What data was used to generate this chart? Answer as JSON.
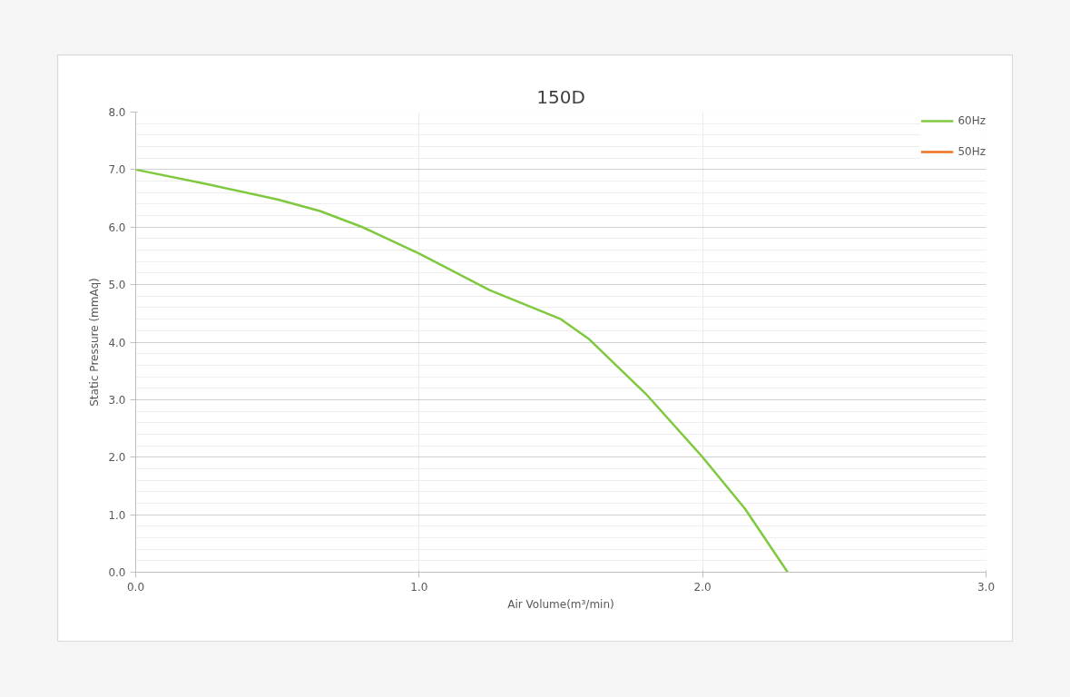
{
  "chart_data": {
    "type": "line",
    "title": "150D",
    "xlabel": "Air Volume(m³/min)",
    "ylabel": "Static Pressure (mmAq)",
    "x": [
      0,
      0.25,
      0.5,
      0.65,
      0.8,
      1.0,
      1.25,
      1.5,
      1.6,
      1.8,
      2.0,
      2.15,
      2.3
    ],
    "series": [
      {
        "name": "60Hz",
        "color": "#7fc840",
        "values": [
          7.0,
          6.75,
          6.48,
          6.28,
          6.0,
          5.54,
          4.9,
          4.4,
          4.05,
          3.1,
          2.0,
          1.1,
          0
        ]
      },
      {
        "name": "50Hz",
        "color": "#f07020",
        "values": [
          null,
          null,
          null,
          null,
          null,
          null,
          null,
          null,
          null,
          null,
          null,
          null,
          null
        ]
      }
    ],
    "xlim": [
      0,
      3
    ],
    "ylim": [
      0,
      8
    ],
    "xticks": [
      {
        "value": 0,
        "label": "0.0"
      },
      {
        "value": 1,
        "label": "1.0"
      },
      {
        "value": 2,
        "label": "2.0"
      },
      {
        "value": 3,
        "label": "3.0"
      }
    ],
    "yticks": [
      {
        "value": 0,
        "label": "0.0"
      },
      {
        "value": 1,
        "label": "1.0"
      },
      {
        "value": 2,
        "label": "2.0"
      },
      {
        "value": 3,
        "label": "3.0"
      },
      {
        "value": 4,
        "label": "4.0"
      },
      {
        "value": 5,
        "label": "5.0"
      },
      {
        "value": 6,
        "label": "6.0"
      },
      {
        "value": 7,
        "label": "7.0"
      },
      {
        "value": 8,
        "label": "8.0"
      }
    ],
    "grid": true,
    "legend": "top right",
    "marker": "none",
    "line_style": "solid"
  }
}
